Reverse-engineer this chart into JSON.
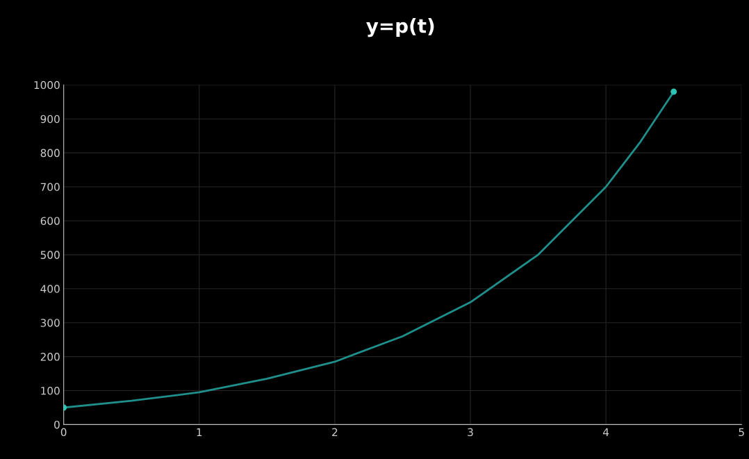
{
  "chart_data": {
    "type": "line",
    "title": "y=p(t)",
    "series": [
      {
        "color": "#1f8f8c",
        "x": [
          0,
          0.5,
          1,
          1.5,
          2,
          2.5,
          3,
          3.5,
          4,
          4.25,
          4.5
        ],
        "values": [
          50,
          70,
          95,
          135,
          185,
          260,
          360,
          500,
          700,
          830,
          980
        ]
      },
      {
        "type": "scatter",
        "marker": "circle",
        "color": "#2ec4b6",
        "x": [
          0,
          4.5
        ],
        "values": [
          50,
          980
        ]
      }
    ],
    "xlim": [
      0,
      5
    ],
    "xticks": [
      0,
      1,
      2,
      3,
      4,
      5
    ],
    "ylim": [
      0,
      1000
    ],
    "yticks": [
      0,
      100,
      200,
      300,
      400,
      500,
      600,
      700,
      800,
      900,
      1000
    ],
    "grid": true,
    "line_style": "solid"
  }
}
